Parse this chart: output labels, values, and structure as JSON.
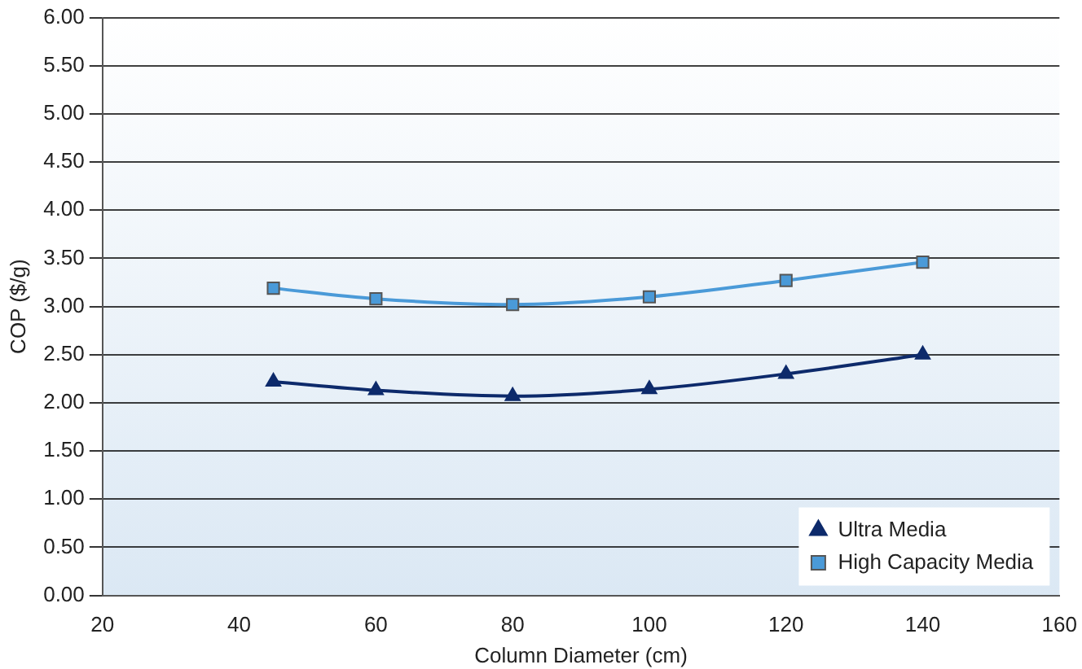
{
  "chart_data": {
    "type": "line",
    "xlabel": "Column Diameter (cm)",
    "ylabel": "COP ($/g)",
    "xlim": [
      20,
      160
    ],
    "xticks": [
      20,
      40,
      60,
      80,
      100,
      120,
      140,
      160
    ],
    "ylim": [
      0,
      6
    ],
    "yticks": [
      {
        "value": 0,
        "label": "0.00"
      },
      {
        "value": 0.5,
        "label": "0.50"
      },
      {
        "value": 1,
        "label": "1.00"
      },
      {
        "value": 1.5,
        "label": "1.50"
      },
      {
        "value": 2,
        "label": "2.00"
      },
      {
        "value": 2.5,
        "label": "2.50"
      },
      {
        "value": 3,
        "label": "3.00"
      },
      {
        "value": 3.5,
        "label": "3.50"
      },
      {
        "value": 4,
        "label": "4.00"
      },
      {
        "value": 4.5,
        "label": "4.50"
      },
      {
        "value": 5,
        "label": "5.00"
      },
      {
        "value": 5.5,
        "label": "5.50"
      },
      {
        "value": 6,
        "label": "6.00"
      }
    ],
    "grid": "y",
    "legend": "bottom right",
    "x": [
      45,
      60,
      80,
      100,
      120,
      140
    ],
    "series": [
      {
        "name": "Ultra Media",
        "color": "#0d2a6b",
        "marker": "triangle",
        "values": [
          2.22,
          2.13,
          2.07,
          2.14,
          2.3,
          2.5
        ]
      },
      {
        "name": "High Capacity Media",
        "color": "#4a9ad8",
        "marker": "square",
        "values": [
          3.19,
          3.08,
          3.02,
          3.1,
          3.27,
          3.46
        ]
      }
    ]
  }
}
